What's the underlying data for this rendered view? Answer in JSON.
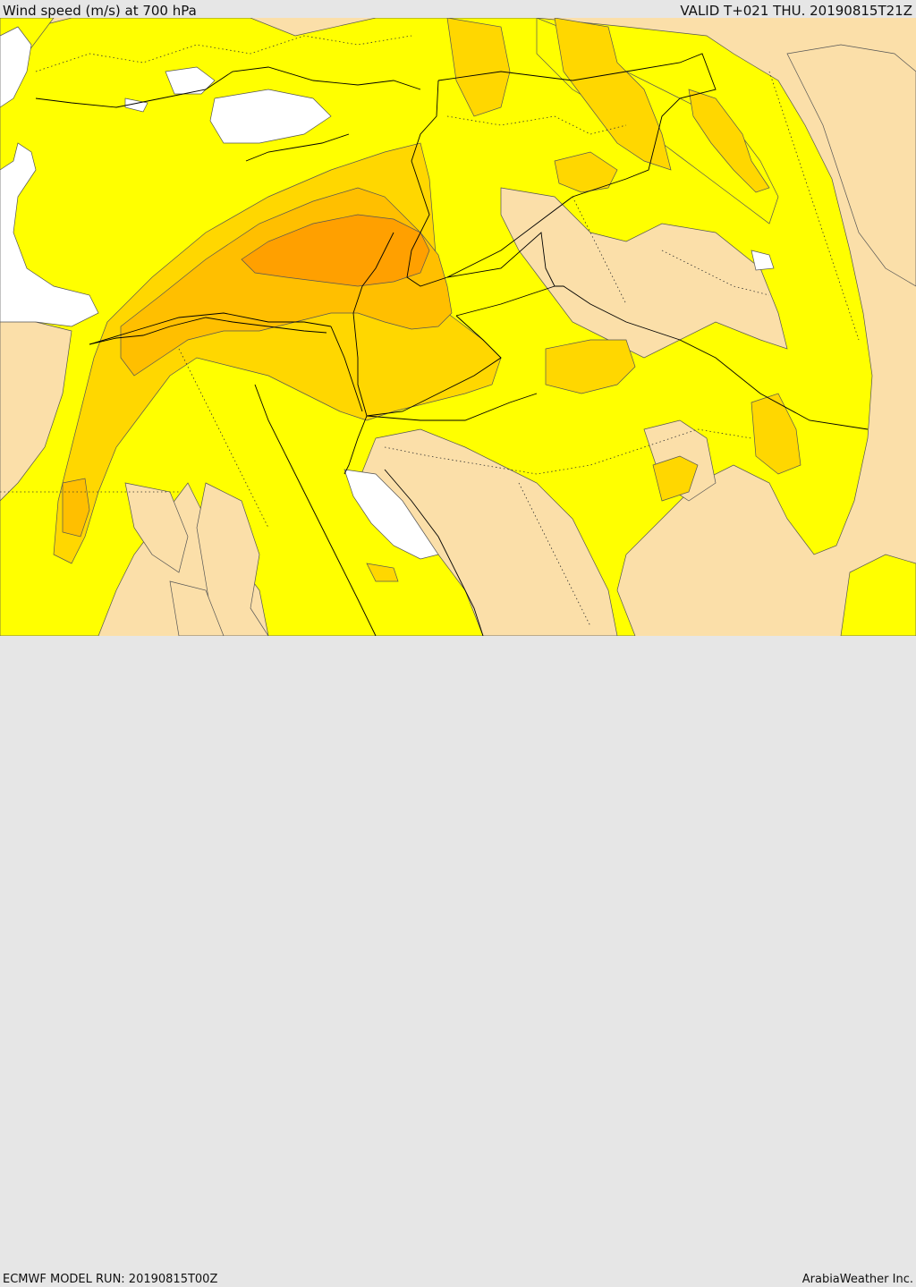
{
  "header": {
    "title": "Wind speed (m/s) at 700 hPa",
    "valid_time": "VALID T+021 THU. 20190815T21Z"
  },
  "footer": {
    "model_run": "ECMWF MODEL RUN: 20190815T00Z",
    "credit": "ArabiaWeather Inc."
  },
  "colors": {
    "land_light": "#fbdfa9",
    "wind_yellow": "#ffff00",
    "wind_gold": "#ffd700",
    "wind_amber": "#ffbf00",
    "wind_orange": "#ffa000",
    "water": "#ffffff",
    "border": "#000000"
  },
  "map": {
    "field": "wind speed",
    "units": "m/s",
    "level": "700 hPa"
  }
}
